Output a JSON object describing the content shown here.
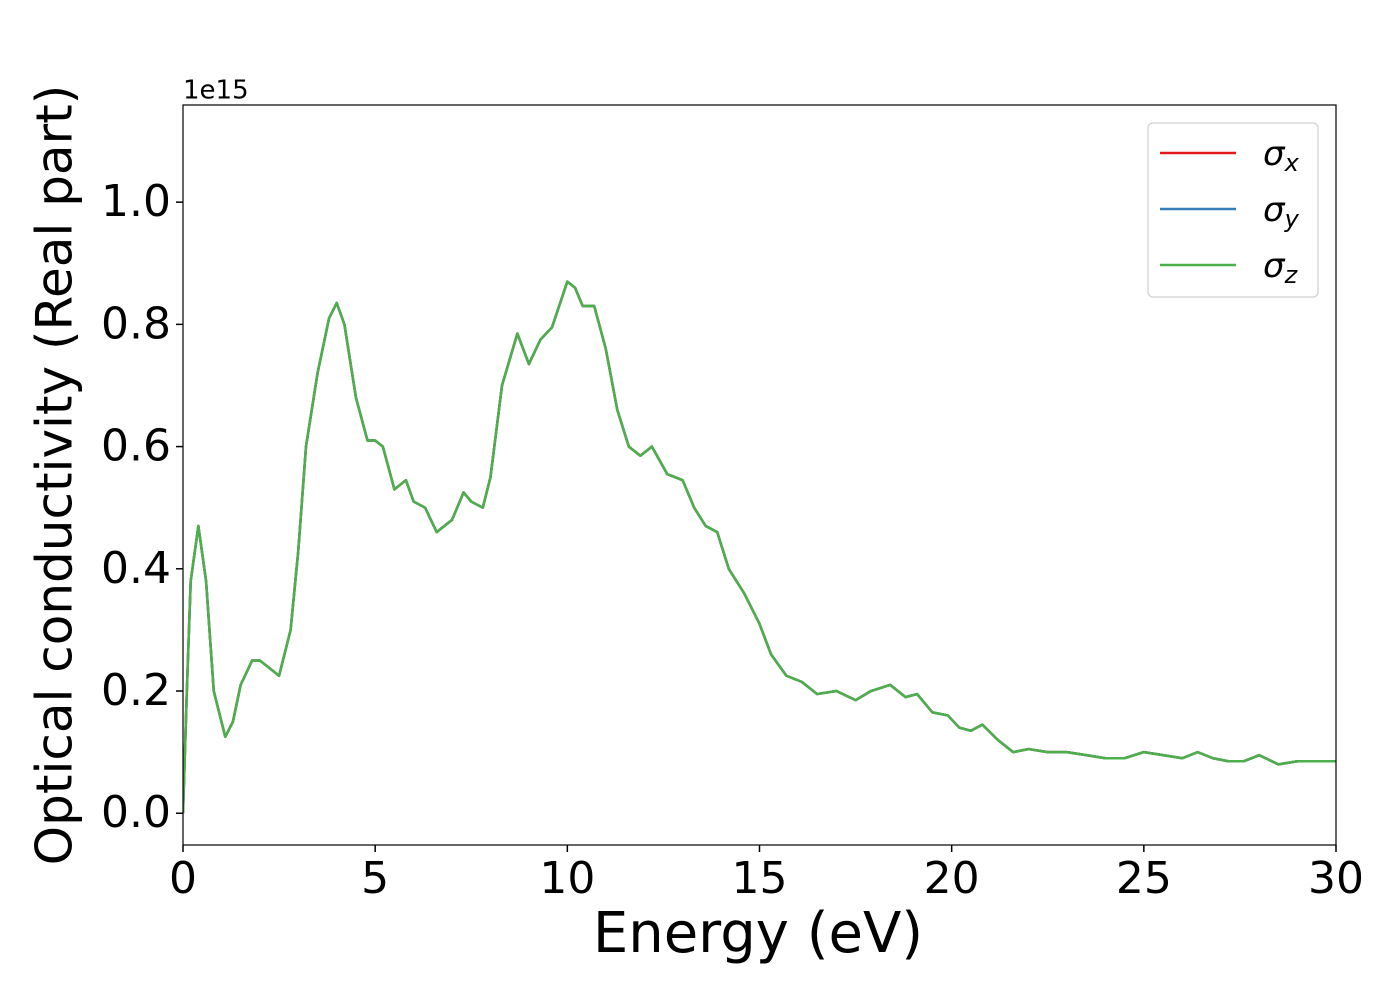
{
  "chart_data": {
    "type": "line",
    "xlabel": "Energy (eV)",
    "ylabel": "Optical conductivity (Real part)",
    "y_offset_label": "1e15",
    "x": [
      0,
      0.1,
      0.2,
      0.4,
      0.6,
      0.8,
      1.1,
      1.3,
      1.5,
      1.8,
      2.0,
      2.2,
      2.5,
      2.8,
      3.0,
      3.2,
      3.5,
      3.8,
      4.0,
      4.2,
      4.5,
      4.8,
      5.0,
      5.2,
      5.5,
      5.8,
      6.0,
      6.3,
      6.6,
      7.0,
      7.3,
      7.5,
      7.8,
      8.0,
      8.3,
      8.7,
      9.0,
      9.3,
      9.6,
      10.0,
      10.2,
      10.4,
      10.7,
      11.0,
      11.3,
      11.6,
      11.9,
      12.2,
      12.6,
      13.0,
      13.3,
      13.6,
      13.9,
      14.2,
      14.6,
      15.0,
      15.3,
      15.7,
      16.1,
      16.5,
      17.0,
      17.5,
      17.9,
      18.4,
      18.8,
      19.1,
      19.5,
      19.9,
      20.2,
      20.5,
      20.8,
      21.2,
      21.6,
      22.0,
      22.5,
      23.0,
      23.5,
      24.0,
      24.5,
      25.0,
      25.5,
      26.0,
      26.4,
      26.8,
      27.2,
      27.6,
      28.0,
      28.5,
      29.0,
      29.5,
      30.0
    ],
    "series": [
      {
        "name": "σ_x",
        "color": "#e41a1c",
        "values": [
          0.0,
          0.2,
          0.38,
          0.47,
          0.38,
          0.2,
          0.125,
          0.15,
          0.21,
          0.25,
          0.25,
          0.24,
          0.225,
          0.3,
          0.43,
          0.6,
          0.72,
          0.81,
          0.835,
          0.8,
          0.68,
          0.61,
          0.61,
          0.6,
          0.53,
          0.545,
          0.51,
          0.5,
          0.46,
          0.48,
          0.525,
          0.51,
          0.5,
          0.55,
          0.7,
          0.785,
          0.735,
          0.775,
          0.795,
          0.87,
          0.86,
          0.83,
          0.83,
          0.76,
          0.66,
          0.6,
          0.585,
          0.6,
          0.555,
          0.545,
          0.5,
          0.47,
          0.46,
          0.4,
          0.36,
          0.31,
          0.26,
          0.225,
          0.215,
          0.195,
          0.2,
          0.185,
          0.2,
          0.21,
          0.19,
          0.195,
          0.165,
          0.16,
          0.14,
          0.135,
          0.145,
          0.12,
          0.1,
          0.105,
          0.1,
          0.1,
          0.095,
          0.09,
          0.09,
          0.1,
          0.095,
          0.09,
          0.1,
          0.09,
          0.085,
          0.085,
          0.095,
          0.08,
          0.085,
          0.085,
          0.085
        ]
      },
      {
        "name": "σ_y",
        "color": "#377eb8",
        "values": [
          0.0,
          0.2,
          0.38,
          0.47,
          0.38,
          0.2,
          0.125,
          0.15,
          0.21,
          0.25,
          0.25,
          0.24,
          0.225,
          0.3,
          0.43,
          0.6,
          0.72,
          0.81,
          0.835,
          0.8,
          0.68,
          0.61,
          0.61,
          0.6,
          0.53,
          0.545,
          0.51,
          0.5,
          0.46,
          0.48,
          0.525,
          0.51,
          0.5,
          0.55,
          0.7,
          0.785,
          0.735,
          0.775,
          0.795,
          0.87,
          0.86,
          0.83,
          0.83,
          0.76,
          0.66,
          0.6,
          0.585,
          0.6,
          0.555,
          0.545,
          0.5,
          0.47,
          0.46,
          0.4,
          0.36,
          0.31,
          0.26,
          0.225,
          0.215,
          0.195,
          0.2,
          0.185,
          0.2,
          0.21,
          0.19,
          0.195,
          0.165,
          0.16,
          0.14,
          0.135,
          0.145,
          0.12,
          0.1,
          0.105,
          0.1,
          0.1,
          0.095,
          0.09,
          0.09,
          0.1,
          0.095,
          0.09,
          0.1,
          0.09,
          0.085,
          0.085,
          0.095,
          0.08,
          0.085,
          0.085,
          0.085
        ]
      },
      {
        "name": "σ_z",
        "color": "#4daf4a",
        "values": [
          0.0,
          0.2,
          0.38,
          0.47,
          0.38,
          0.2,
          0.125,
          0.15,
          0.21,
          0.25,
          0.25,
          0.24,
          0.225,
          0.3,
          0.43,
          0.6,
          0.72,
          0.81,
          0.835,
          0.8,
          0.68,
          0.61,
          0.61,
          0.6,
          0.53,
          0.545,
          0.51,
          0.5,
          0.46,
          0.48,
          0.525,
          0.51,
          0.5,
          0.55,
          0.7,
          0.785,
          0.735,
          0.775,
          0.795,
          0.87,
          0.86,
          0.83,
          0.83,
          0.76,
          0.66,
          0.6,
          0.585,
          0.6,
          0.555,
          0.545,
          0.5,
          0.47,
          0.46,
          0.4,
          0.36,
          0.31,
          0.26,
          0.225,
          0.215,
          0.195,
          0.2,
          0.185,
          0.2,
          0.21,
          0.19,
          0.195,
          0.165,
          0.16,
          0.14,
          0.135,
          0.145,
          0.12,
          0.1,
          0.105,
          0.1,
          0.1,
          0.095,
          0.09,
          0.09,
          0.1,
          0.095,
          0.09,
          0.1,
          0.09,
          0.085,
          0.085,
          0.095,
          0.08,
          0.085,
          0.085,
          0.085
        ]
      }
    ],
    "xlim": [
      0,
      30
    ],
    "xticks": [
      0,
      5,
      10,
      15,
      20,
      25,
      30
    ],
    "ylim": [
      -0.052,
      1.159
    ],
    "yticks": [
      {
        "value": 0,
        "label": "0.0"
      },
      0.2,
      0.4,
      0.6,
      0.8,
      {
        "value": 1,
        "label": "1.0"
      }
    ],
    "grid": false,
    "legend": "upper right"
  }
}
